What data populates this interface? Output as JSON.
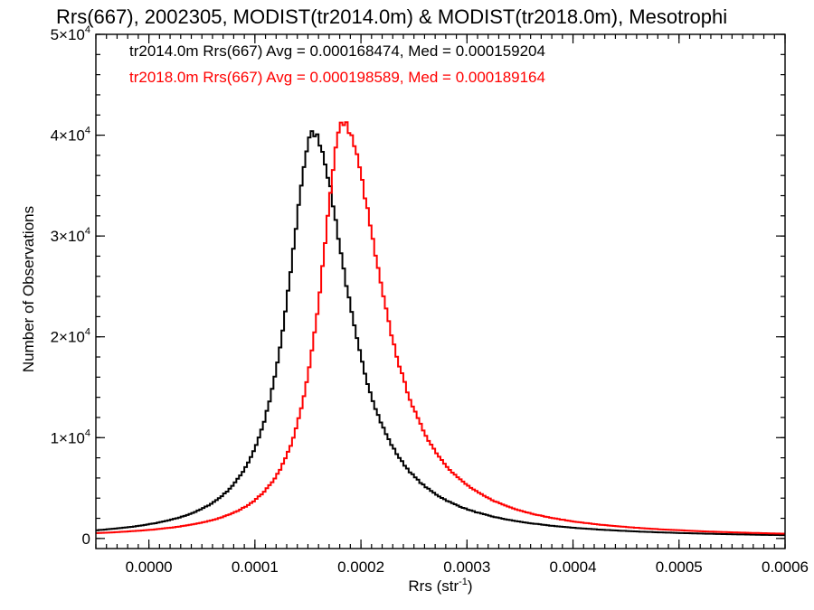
{
  "chart_data": {
    "type": "line",
    "title": "Rrs(667), 2002305, MODIST(tr2014.0m) & MODIST(tr2018.0m), Mesotrophi",
    "xlabel_main": "Rrs (str",
    "xlabel_sup": "-1",
    "xlabel_end": ")",
    "ylabel": "Number of Observations",
    "xlim": [
      -5e-05,
      0.0006
    ],
    "ylim": [
      -1000,
      50000
    ],
    "x_ticks": [
      {
        "value": 0.0,
        "label": "0.0000"
      },
      {
        "value": 0.0001,
        "label": "0.0001"
      },
      {
        "value": 0.0002,
        "label": "0.0002"
      },
      {
        "value": 0.0003,
        "label": "0.0003"
      },
      {
        "value": 0.0004,
        "label": "0.0004"
      },
      {
        "value": 0.0005,
        "label": "0.0005"
      },
      {
        "value": 0.0006,
        "label": "0.0006"
      }
    ],
    "y_ticks": [
      {
        "value": 0,
        "base": "0",
        "exp": ""
      },
      {
        "value": 10000,
        "base": "1×10",
        "exp": "4"
      },
      {
        "value": 20000,
        "base": "2×10",
        "exp": "4"
      },
      {
        "value": 30000,
        "base": "3×10",
        "exp": "4"
      },
      {
        "value": 40000,
        "base": "4×10",
        "exp": "4"
      },
      {
        "value": 50000,
        "base": "5×10",
        "exp": "4"
      }
    ],
    "series": [
      {
        "name": "tr2014.0m",
        "color": "#000000",
        "annotation": "tr2014.0m Rrs(667) Avg = 0.000168474, Med = 0.000159204",
        "peak_x": 0.000155,
        "peak_y": 40200,
        "width_left": 2.95e-05,
        "width_right": 4.05e-05
      },
      {
        "name": "tr2018.0m",
        "color": "#ff0000",
        "annotation": "tr2018.0m Rrs(667) Avg = 0.000198589, Med = 0.000189164",
        "peak_x": 0.000183,
        "peak_y": 41200,
        "width_left": 2.65e-05,
        "width_right": 4.5e-05
      }
    ],
    "bin_width": 2.5e-06,
    "grid": false,
    "legend": "top-left"
  }
}
